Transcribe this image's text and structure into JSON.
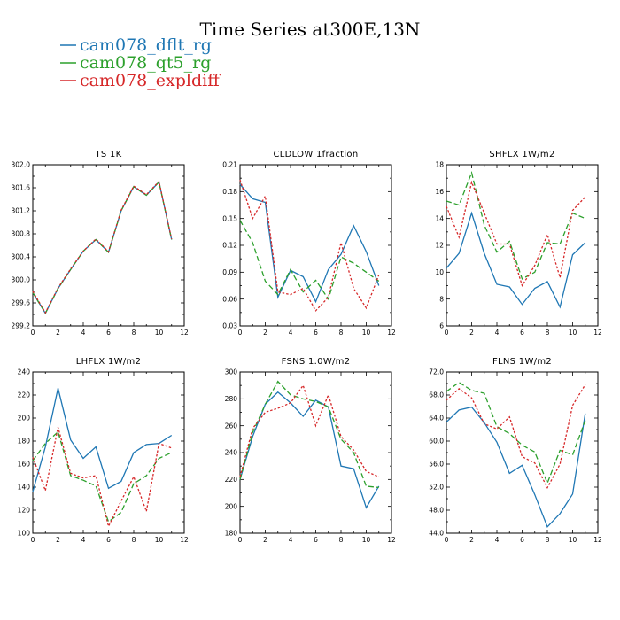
{
  "figure": {
    "title": "Time Series at300E,13N",
    "legend": [
      {
        "name": "cam078_dflt_rg",
        "color": "#1f77b4",
        "dash": "solid"
      },
      {
        "name": "cam078_qt5_rg",
        "color": "#2ca02c",
        "dash": "dashed"
      },
      {
        "name": "cam078_expldiff",
        "color": "#d62728",
        "dash": "dotted"
      }
    ]
  },
  "chart_data": [
    {
      "type": "line",
      "title": "TS   1K",
      "x": [
        0,
        1,
        2,
        3,
        4,
        5,
        6,
        7,
        8,
        9,
        10,
        11
      ],
      "xlim": [
        0,
        12
      ],
      "xticks": [
        0,
        2,
        4,
        6,
        8,
        10,
        12
      ],
      "ylim": [
        299.2,
        302.0
      ],
      "yticks": [
        299.2,
        299.6,
        300.0,
        300.4,
        300.8,
        301.2,
        301.6,
        302.0
      ],
      "ytick_labels": [
        "299.2",
        "299.6",
        "300.0",
        "300.4",
        "300.8",
        "301.2",
        "301.6",
        "302.0"
      ],
      "series": [
        {
          "name": "cam078_dflt_rg",
          "values": [
            299.78,
            299.42,
            299.85,
            300.18,
            300.5,
            300.7,
            300.48,
            301.2,
            301.62,
            301.47,
            301.7,
            300.7
          ]
        },
        {
          "name": "cam078_qt5_rg",
          "values": [
            299.78,
            299.42,
            299.85,
            300.18,
            300.5,
            300.7,
            300.48,
            301.2,
            301.62,
            301.47,
            301.7,
            300.7
          ]
        },
        {
          "name": "cam078_expldiff",
          "values": [
            299.8,
            299.43,
            299.86,
            300.19,
            300.5,
            300.71,
            300.49,
            301.21,
            301.63,
            301.48,
            301.71,
            300.71
          ]
        }
      ]
    },
    {
      "type": "line",
      "title": "CLDLOW   1fraction",
      "x": [
        0,
        1,
        2,
        3,
        4,
        5,
        6,
        7,
        8,
        9,
        10,
        11
      ],
      "xlim": [
        0,
        12
      ],
      "xticks": [
        0,
        2,
        4,
        6,
        8,
        10,
        12
      ],
      "ylim": [
        0.03,
        0.21
      ],
      "yticks": [
        0.03,
        0.06,
        0.09,
        0.12,
        0.15,
        0.18,
        0.21
      ],
      "ytick_labels": [
        "0.03",
        "0.06",
        "0.09",
        "0.12",
        "0.15",
        "0.18",
        "0.21"
      ],
      "series": [
        {
          "name": "cam078_dflt_rg",
          "values": [
            0.188,
            0.172,
            0.168,
            0.062,
            0.092,
            0.085,
            0.057,
            0.093,
            0.11,
            0.142,
            0.113,
            0.075
          ]
        },
        {
          "name": "cam078_qt5_rg",
          "values": [
            0.148,
            0.123,
            0.08,
            0.065,
            0.093,
            0.068,
            0.081,
            0.06,
            0.107,
            0.1,
            0.09,
            0.08
          ]
        },
        {
          "name": "cam078_expldiff",
          "values": [
            0.193,
            0.15,
            0.175,
            0.068,
            0.065,
            0.072,
            0.047,
            0.062,
            0.123,
            0.072,
            0.05,
            0.087
          ]
        }
      ]
    },
    {
      "type": "line",
      "title": "SHFLX   1W/m2",
      "x": [
        0,
        1,
        2,
        3,
        4,
        5,
        6,
        7,
        8,
        9,
        10,
        11
      ],
      "xlim": [
        0,
        12
      ],
      "xticks": [
        0,
        2,
        4,
        6,
        8,
        10,
        12
      ],
      "ylim": [
        6,
        18
      ],
      "yticks": [
        6,
        8,
        10,
        12,
        14,
        16,
        18
      ],
      "ytick_labels": [
        "6",
        "8",
        "10",
        "12",
        "14",
        "16",
        "18"
      ],
      "series": [
        {
          "name": "cam078_dflt_rg",
          "values": [
            10.3,
            11.4,
            14.4,
            11.4,
            9.1,
            8.9,
            7.6,
            8.8,
            9.3,
            7.4,
            11.3,
            12.2
          ]
        },
        {
          "name": "cam078_qt5_rg",
          "values": [
            15.3,
            15.0,
            17.4,
            13.5,
            11.5,
            12.3,
            9.5,
            10.0,
            12.2,
            12.1,
            14.4,
            14.0
          ]
        },
        {
          "name": "cam078_expldiff",
          "values": [
            14.9,
            12.6,
            16.7,
            14.4,
            12.1,
            12.1,
            9.0,
            10.5,
            12.8,
            9.6,
            14.6,
            15.6
          ]
        }
      ]
    },
    {
      "type": "line",
      "title": "LHFLX   1W/m2",
      "x": [
        0,
        1,
        2,
        3,
        4,
        5,
        6,
        7,
        8,
        9,
        10,
        11
      ],
      "xlim": [
        0,
        12
      ],
      "xticks": [
        0,
        2,
        4,
        6,
        8,
        10,
        12
      ],
      "ylim": [
        100,
        240
      ],
      "yticks": [
        100,
        120,
        140,
        160,
        180,
        200,
        220,
        240
      ],
      "ytick_labels": [
        "100",
        "120",
        "140",
        "160",
        "180",
        "200",
        "220",
        "240"
      ],
      "series": [
        {
          "name": "cam078_dflt_rg",
          "values": [
            136,
            175,
            226,
            181,
            165,
            175,
            139,
            145,
            170,
            177,
            178,
            185
          ]
        },
        {
          "name": "cam078_qt5_rg",
          "values": [
            163,
            178,
            188,
            150,
            146,
            141,
            110,
            118,
            143,
            150,
            165,
            170
          ]
        },
        {
          "name": "cam078_expldiff",
          "values": [
            166,
            137,
            192,
            152,
            148,
            150,
            106,
            128,
            149,
            119,
            178,
            174
          ]
        }
      ]
    },
    {
      "type": "line",
      "title": "FSNS   1.0W/m2",
      "x": [
        0,
        1,
        2,
        3,
        4,
        5,
        6,
        7,
        8,
        9,
        10,
        11
      ],
      "xlim": [
        0,
        12
      ],
      "xticks": [
        0,
        2,
        4,
        6,
        8,
        10,
        12
      ],
      "ylim": [
        180,
        300
      ],
      "yticks": [
        180,
        200,
        220,
        240,
        260,
        280,
        300
      ],
      "ytick_labels": [
        "180",
        "200",
        "220",
        "240",
        "260",
        "280",
        "300"
      ],
      "series": [
        {
          "name": "cam078_dflt_rg",
          "values": [
            220,
            252,
            276,
            285,
            277,
            267,
            279,
            274,
            230,
            228,
            199,
            215
          ]
        },
        {
          "name": "cam078_qt5_rg",
          "values": [
            220,
            255,
            276,
            293,
            283,
            280,
            278,
            274,
            250,
            240,
            215,
            214
          ]
        },
        {
          "name": "cam078_expldiff",
          "values": [
            222,
            258,
            270,
            273,
            277,
            290,
            260,
            283,
            252,
            242,
            226,
            222
          ]
        }
      ]
    },
    {
      "type": "line",
      "title": "FLNS   1W/m2",
      "x": [
        0,
        1,
        2,
        3,
        4,
        5,
        6,
        7,
        8,
        9,
        10,
        11
      ],
      "xlim": [
        0,
        12
      ],
      "xticks": [
        0,
        2,
        4,
        6,
        8,
        10,
        12
      ],
      "ylim": [
        44.0,
        72.0
      ],
      "yticks": [
        44,
        48,
        52,
        56,
        60,
        64,
        68,
        72
      ],
      "ytick_labels": [
        "44.0",
        "48.0",
        "52.0",
        "56.0",
        "60.0",
        "64.0",
        "68.0",
        "72.0"
      ],
      "series": [
        {
          "name": "cam078_dflt_rg",
          "values": [
            63.3,
            65.4,
            65.9,
            63.2,
            59.8,
            54.4,
            55.8,
            50.7,
            45.1,
            47.4,
            50.8,
            64.8
          ]
        },
        {
          "name": "cam078_qt5_rg",
          "values": [
            68.6,
            70.2,
            68.8,
            68.3,
            62.5,
            61.3,
            59.3,
            58.1,
            52.7,
            58.4,
            57.6,
            63.6
          ]
        },
        {
          "name": "cam078_expldiff",
          "values": [
            67.1,
            69.1,
            67.5,
            63.0,
            62.1,
            64.2,
            57.3,
            56.2,
            51.9,
            56.0,
            66.2,
            69.8
          ]
        }
      ]
    }
  ]
}
